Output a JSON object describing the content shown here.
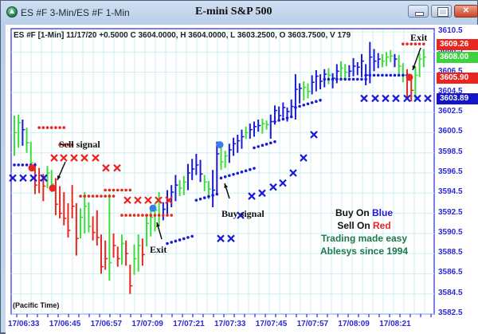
{
  "window": {
    "title": "ES #F 3-Min/ES #F 1-Min",
    "chart_title": "E-mini S&P 500",
    "buttons": {
      "minimize": "minimize",
      "maximize": "maximize",
      "close": "close"
    }
  },
  "info_line": "ES #F [1-Min] 11/17/20  +0.5000 C 3604.0000, H 3604.0000, L 3603.2500, O 3603.7500, V 179",
  "y_axis": {
    "labels": [
      "3610.5",
      "3608.5",
      "3606.5",
      "3604.5",
      "3602.5",
      "3600.5",
      "3598.5",
      "3596.5",
      "3594.5",
      "3592.5",
      "3590.5",
      "3588.5",
      "3586.5",
      "3584.5",
      "3582.5"
    ],
    "tags": [
      {
        "value": "3609.26",
        "price": 3609.26,
        "color": "#e8261f"
      },
      {
        "value": "3608.00",
        "price": 3608.0,
        "color": "#3fd23f"
      },
      {
        "value": "3605.90",
        "price": 3605.9,
        "color": "#e8261f"
      },
      {
        "value": "3603.89",
        "price": 3603.89,
        "color": "#1414c8"
      }
    ]
  },
  "x_axis": {
    "labels": [
      "17/06:33",
      "17/06:45",
      "17/06:57",
      "17/07:09",
      "17/07:21",
      "17/07:33",
      "17/07:45",
      "17/07:57",
      "17/08:09",
      "17/08:21"
    ]
  },
  "footer_note": "(Pacific Time)",
  "annotations": {
    "sell_signal": "Sell signal",
    "buy_signal": "Buy signal",
    "exit_1": "Exit",
    "exit_2": "Exit"
  },
  "legend": {
    "buy_prefix": "Buy On ",
    "buy_color_word": "Blue",
    "sell_prefix": "Sell On ",
    "sell_color_word": "Red",
    "tagline_1": "Trading made easy",
    "tagline_2": "Ablesys since 1994"
  },
  "colors": {
    "up_bar": "#3ddc3d",
    "buy_bar": "#1a1ad6",
    "sell_bar": "#e8261f",
    "grid": "#cdeff3",
    "axis": "#5252e0"
  },
  "chart_data": {
    "type": "ohlc",
    "title": "E-mini S&P 500",
    "symbol": "ES #F [1-Min]",
    "ylim": [
      3582.5,
      3610.5
    ],
    "grid": true,
    "bars_hlc_color": [
      [
        3602.2,
        3598.2,
        3600.5,
        "g"
      ],
      [
        3602.3,
        3599.0,
        3601.5,
        "g"
      ],
      [
        3601.8,
        3599.2,
        3600.8,
        "b"
      ],
      [
        3601.0,
        3598.5,
        3599.5,
        "g"
      ],
      [
        3599.6,
        3596.8,
        3597.5,
        "g"
      ],
      [
        3597.5,
        3594.4,
        3595.3,
        "r"
      ],
      [
        3597.0,
        3594.5,
        3595.8,
        "r"
      ],
      [
        3596.4,
        3593.7,
        3595.2,
        "r"
      ],
      [
        3597.2,
        3595.0,
        3596.5,
        "g"
      ],
      [
        3596.8,
        3594.6,
        3595.4,
        "g"
      ],
      [
        3596.0,
        3592.3,
        3593.4,
        "r"
      ],
      [
        3595.2,
        3592.0,
        3592.5,
        "r"
      ],
      [
        3594.6,
        3591.3,
        3592.0,
        "r"
      ],
      [
        3593.5,
        3590.1,
        3590.8,
        "r"
      ],
      [
        3595.3,
        3592.0,
        3593.2,
        "r"
      ],
      [
        3593.5,
        3588.3,
        3590.0,
        "r"
      ],
      [
        3593.0,
        3590.0,
        3592.1,
        "g"
      ],
      [
        3594.6,
        3590.5,
        3593.2,
        "g"
      ],
      [
        3593.6,
        3590.6,
        3591.2,
        "g"
      ],
      [
        3592.2,
        3589.8,
        3590.6,
        "r"
      ],
      [
        3592.8,
        3589.3,
        3590.1,
        "r"
      ],
      [
        3590.4,
        3586.5,
        3587.2,
        "r"
      ],
      [
        3589.8,
        3586.9,
        3588.0,
        "r"
      ],
      [
        3594.4,
        3585.8,
        3587.6,
        "g"
      ],
      [
        3590.5,
        3588.1,
        3589.3,
        "r"
      ],
      [
        3589.2,
        3587.2,
        3588.0,
        "r"
      ],
      [
        3590.4,
        3587.4,
        3589.5,
        "g"
      ],
      [
        3589.8,
        3587.3,
        3588.5,
        "r"
      ],
      [
        3587.4,
        3584.5,
        3585.3,
        "r"
      ],
      [
        3589.4,
        3586.4,
        3588.0,
        "g"
      ],
      [
        3590.4,
        3586.7,
        3589.3,
        "g"
      ],
      [
        3590.0,
        3587.3,
        3588.4,
        "r"
      ],
      [
        3592.4,
        3589.2,
        3591.5,
        "g"
      ],
      [
        3592.9,
        3590.2,
        3592.1,
        "g"
      ],
      [
        3593.5,
        3590.7,
        3592.8,
        "g"
      ],
      [
        3594.6,
        3591.3,
        3593.6,
        "g"
      ],
      [
        3593.6,
        3591.8,
        3592.9,
        "b"
      ],
      [
        3594.8,
        3592.2,
        3593.7,
        "b"
      ],
      [
        3595.3,
        3593.1,
        3594.6,
        "b"
      ],
      [
        3596.3,
        3593.7,
        3595.3,
        "b"
      ],
      [
        3595.8,
        3594.2,
        3595.0,
        "g"
      ],
      [
        3596.2,
        3594.3,
        3595.6,
        "g"
      ],
      [
        3597.4,
        3594.8,
        3596.5,
        "b"
      ],
      [
        3597.9,
        3595.8,
        3596.9,
        "b"
      ],
      [
        3598.4,
        3596.3,
        3597.3,
        "b"
      ],
      [
        3597.8,
        3595.6,
        3596.4,
        "b"
      ],
      [
        3596.3,
        3594.7,
        3595.6,
        "g"
      ],
      [
        3595.7,
        3593.9,
        3594.9,
        "g"
      ],
      [
        3596.8,
        3593.1,
        3594.8,
        "b"
      ],
      [
        3599.6,
        3594.5,
        3598.4,
        "b"
      ],
      [
        3599.0,
        3596.8,
        3597.6,
        "g"
      ],
      [
        3598.7,
        3597.0,
        3598.2,
        "g"
      ],
      [
        3599.4,
        3597.5,
        3598.8,
        "b"
      ],
      [
        3600.0,
        3598.2,
        3599.4,
        "b"
      ],
      [
        3600.3,
        3598.5,
        3599.7,
        "b"
      ],
      [
        3600.8,
        3598.9,
        3600.1,
        "b"
      ],
      [
        3601.1,
        3599.9,
        3600.5,
        "g"
      ],
      [
        3601.4,
        3599.9,
        3600.8,
        "b"
      ],
      [
        3601.6,
        3600.1,
        3601.1,
        "b"
      ],
      [
        3601.8,
        3600.6,
        3601.2,
        "b"
      ],
      [
        3601.9,
        3600.4,
        3601.4,
        "g"
      ],
      [
        3601.7,
        3600.8,
        3601.3,
        "g"
      ],
      [
        3602.3,
        3599.9,
        3601.6,
        "b"
      ],
      [
        3603.2,
        3601.3,
        3602.7,
        "b"
      ],
      [
        3603.1,
        3601.6,
        3602.2,
        "b"
      ],
      [
        3603.5,
        3602.0,
        3603.0,
        "b"
      ],
      [
        3603.0,
        3601.6,
        3602.6,
        "b"
      ],
      [
        3603.8,
        3602.2,
        3603.1,
        "b"
      ],
      [
        3606.3,
        3601.8,
        3604.8,
        "b"
      ],
      [
        3605.4,
        3603.4,
        3604.9,
        "b"
      ],
      [
        3605.6,
        3603.7,
        3605.0,
        "g"
      ],
      [
        3605.4,
        3603.9,
        3604.6,
        "g"
      ],
      [
        3606.2,
        3604.3,
        3605.5,
        "b"
      ],
      [
        3606.7,
        3604.6,
        3606.1,
        "b"
      ],
      [
        3606.3,
        3604.8,
        3605.6,
        "b"
      ],
      [
        3606.8,
        3605.0,
        3606.3,
        "b"
      ],
      [
        3606.9,
        3605.3,
        3606.2,
        "g"
      ],
      [
        3606.4,
        3604.9,
        3605.9,
        "b"
      ],
      [
        3607.3,
        3605.4,
        3606.6,
        "b"
      ],
      [
        3607.6,
        3605.9,
        3606.9,
        "g"
      ],
      [
        3607.3,
        3605.9,
        3606.5,
        "g"
      ],
      [
        3607.2,
        3606.0,
        3606.6,
        "b"
      ],
      [
        3607.9,
        3606.1,
        3607.1,
        "b"
      ],
      [
        3607.5,
        3606.2,
        3607.0,
        "b"
      ],
      [
        3608.3,
        3606.0,
        3607.6,
        "b"
      ],
      [
        3607.3,
        3605.2,
        3606.2,
        "b"
      ],
      [
        3609.5,
        3605.4,
        3608.0,
        "b"
      ],
      [
        3608.8,
        3606.6,
        3607.6,
        "b"
      ],
      [
        3608.4,
        3606.9,
        3607.8,
        "b"
      ],
      [
        3608.3,
        3607.0,
        3607.6,
        "g"
      ],
      [
        3608.5,
        3607.1,
        3608.0,
        "g"
      ],
      [
        3608.7,
        3607.5,
        3608.1,
        "g"
      ],
      [
        3608.3,
        3607.0,
        3607.8,
        "b"
      ],
      [
        3608.2,
        3606.3,
        3607.1,
        "g"
      ],
      [
        3607.4,
        3605.5,
        3606.2,
        "g"
      ],
      [
        3606.8,
        3604.0,
        3605.9,
        "r"
      ],
      [
        3605.8,
        3603.6,
        3604.7,
        "r"
      ],
      [
        3607.0,
        3603.8,
        3606.2,
        "g"
      ],
      [
        3608.4,
        3606.0,
        3607.8,
        "g"
      ],
      [
        3608.8,
        3607.0,
        3608.0,
        "g"
      ]
    ],
    "signals": [
      {
        "type": "sell",
        "bar": 6,
        "price": 3595.2,
        "label": "Sell signal"
      },
      {
        "type": "buy_exit",
        "bar": 36,
        "price": 3592.4,
        "label": "Exit"
      },
      {
        "type": "buy",
        "bar": 48,
        "price": 3598.5,
        "label": "Buy signal"
      },
      {
        "type": "sell_exit",
        "bar": 94,
        "price": 3605.8,
        "label": "Exit"
      }
    ]
  }
}
